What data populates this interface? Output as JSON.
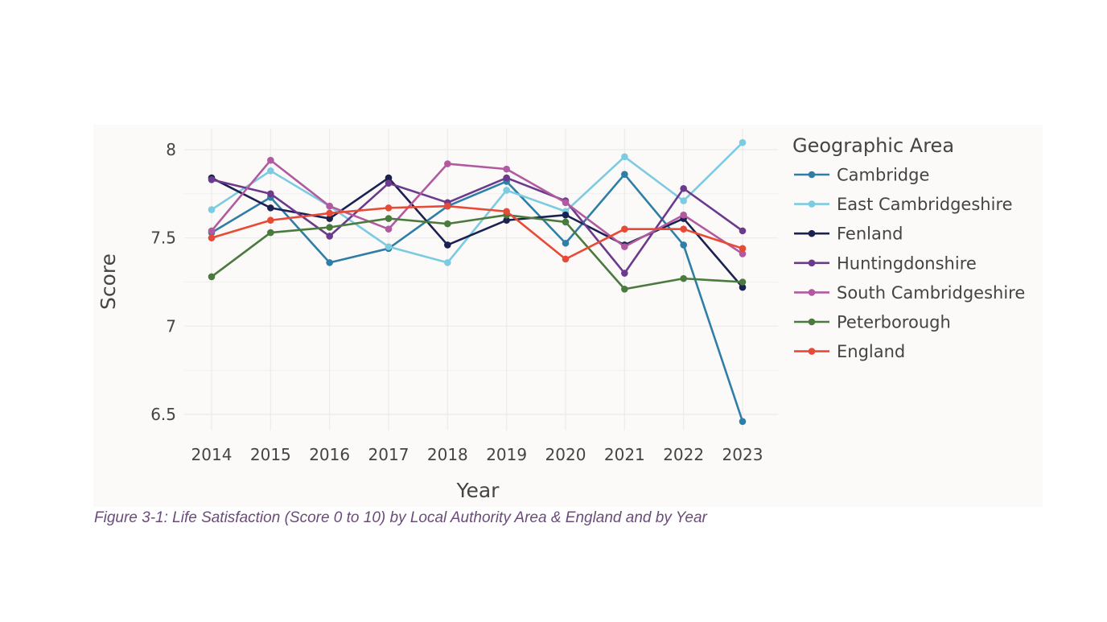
{
  "caption": "Figure 3-1: Life Satisfaction (Score 0 to 10) by Local Authority Area & England and by Year",
  "chart_data": {
    "type": "line",
    "title": "",
    "xlabel": "Year",
    "ylabel": "Score",
    "x": [
      "2014",
      "2015",
      "2016",
      "2017",
      "2018",
      "2019",
      "2020",
      "2021",
      "2022",
      "2023"
    ],
    "ylim": [
      6.45,
      8.05
    ],
    "yticks": [
      6.5,
      7,
      7.5,
      8
    ],
    "ytick_labels": [
      "6.5",
      "7",
      "7.5",
      "8"
    ],
    "grid": true,
    "legend_title": "Geographic Area",
    "legend_position": "right",
    "series": [
      {
        "name": "Cambridge",
        "color": "#2e7ea6",
        "values": [
          7.53,
          7.73,
          7.36,
          7.44,
          7.68,
          7.82,
          7.47,
          7.86,
          7.46,
          6.46
        ]
      },
      {
        "name": "East Cambridgeshire",
        "color": "#7ccbe0",
        "values": [
          7.66,
          7.88,
          7.68,
          7.45,
          7.36,
          7.77,
          7.65,
          7.96,
          7.71,
          8.04
        ]
      },
      {
        "name": "Fenland",
        "color": "#1b2252",
        "values": [
          7.84,
          7.67,
          7.61,
          7.84,
          7.46,
          7.6,
          7.63,
          7.46,
          7.61,
          7.22
        ]
      },
      {
        "name": "Huntingdonshire",
        "color": "#6c3a8c",
        "values": [
          7.83,
          7.75,
          7.51,
          7.81,
          7.7,
          7.84,
          7.71,
          7.3,
          7.78,
          7.54
        ]
      },
      {
        "name": "South Cambridgeshire",
        "color": "#b25aa0",
        "values": [
          7.54,
          7.94,
          7.68,
          7.55,
          7.92,
          7.89,
          7.7,
          7.45,
          7.63,
          7.41
        ]
      },
      {
        "name": "Peterborough",
        "color": "#4a7a3e",
        "values": [
          7.28,
          7.53,
          7.56,
          7.61,
          7.58,
          7.63,
          7.59,
          7.21,
          7.27,
          7.25
        ]
      },
      {
        "name": "England",
        "color": "#e84a35",
        "values": [
          7.5,
          7.6,
          7.64,
          7.67,
          7.68,
          7.65,
          7.38,
          7.55,
          7.55,
          7.44
        ]
      }
    ]
  }
}
